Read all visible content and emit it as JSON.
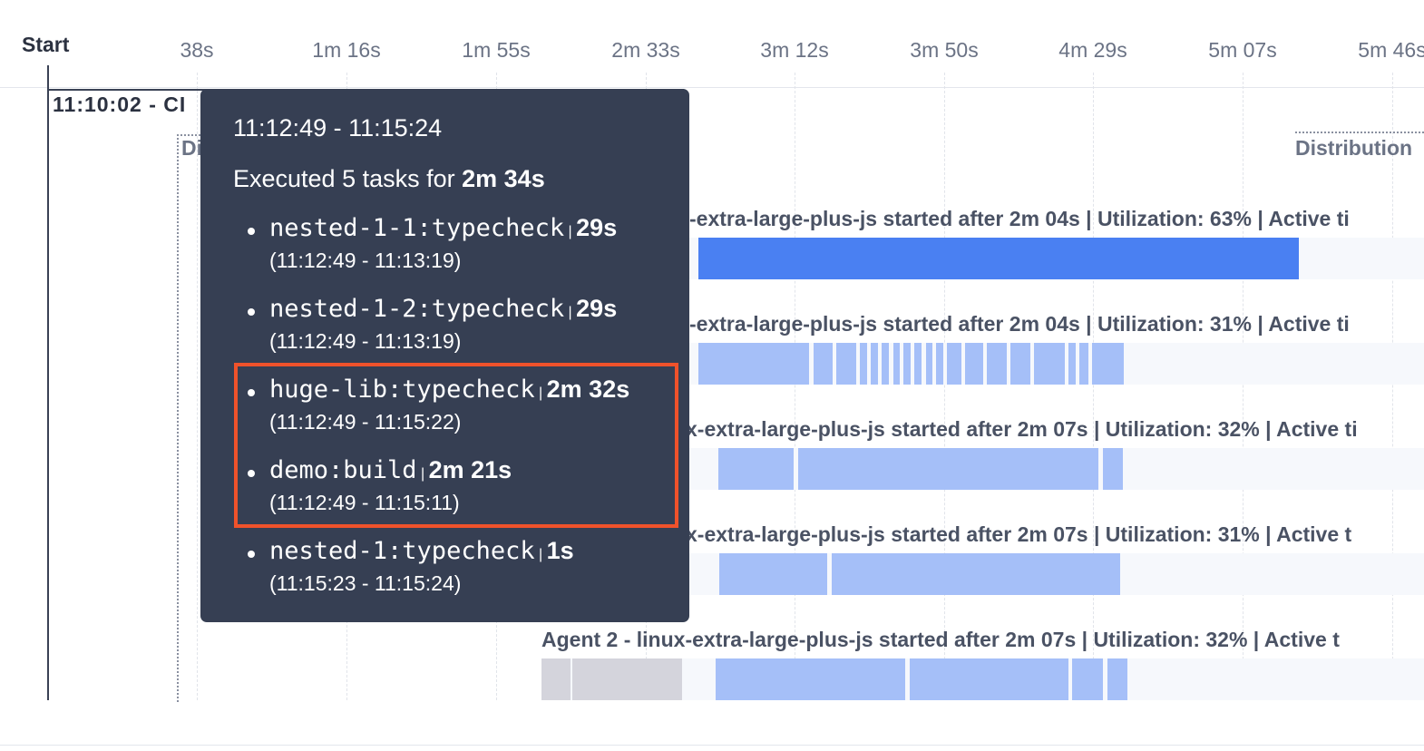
{
  "timeline": {
    "start_label": "Start",
    "ticks": [
      "38s",
      "1m 16s",
      "1m 55s",
      "2m 33s",
      "3m 12s",
      "3m 50s",
      "4m 29s",
      "5m 07s",
      "5m 46s"
    ]
  },
  "run_label": "11:10:02 - CI",
  "groups": [
    "Distribution",
    "Distribution"
  ],
  "agents": [
    "-extra-large-plus-js started after 2m 04s | Utilization: 63% | Active ti",
    "-extra-large-plus-js started after 2m 04s | Utilization: 31% | Active ti",
    "x-extra-large-plus-js started after 2m 07s | Utilization: 32% | Active ti",
    "x-extra-large-plus-js started after 2m 07s | Utilization: 31% | Active t",
    "Agent 2 - linux-extra-large-plus-js started after 2m 07s | Utilization: 32% | Active t"
  ],
  "tooltip": {
    "range": "11:12:49 - 11:15:24",
    "summary_prefix": "Executed 5 tasks for",
    "summary_duration": "2m 34s",
    "tasks": [
      {
        "name": "nested-1-1:typecheck",
        "duration": "29s",
        "range": "(11:12:49 - 11:13:19)"
      },
      {
        "name": "nested-1-2:typecheck",
        "duration": "29s",
        "range": "(11:12:49 - 11:13:19)"
      },
      {
        "name": "huge-lib:typecheck",
        "duration": "2m 32s",
        "range": "(11:12:49 - 11:15:22)"
      },
      {
        "name": "demo:build",
        "duration": "2m 21s",
        "range": "(11:12:49 - 11:15:11)"
      },
      {
        "name": "nested-1:typecheck",
        "duration": "1s",
        "range": "(11:15:23 - 11:15:24)"
      }
    ]
  }
}
